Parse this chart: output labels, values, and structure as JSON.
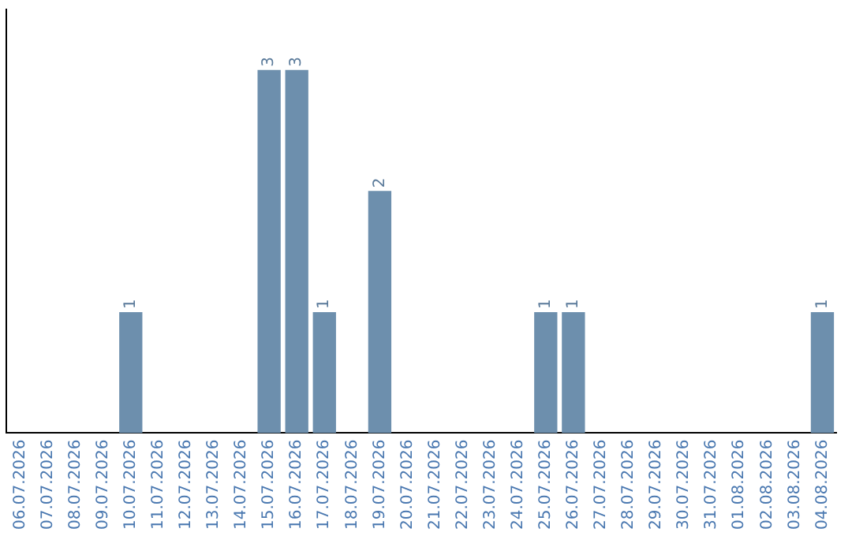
{
  "chart_data": {
    "type": "bar",
    "categories": [
      "06.07.2026",
      "07.07.2026",
      "08.07.2026",
      "09.07.2026",
      "10.07.2026",
      "11.07.2026",
      "12.07.2026",
      "13.07.2026",
      "14.07.2026",
      "15.07.2026",
      "16.07.2026",
      "17.07.2026",
      "18.07.2026",
      "19.07.2026",
      "20.07.2026",
      "21.07.2026",
      "22.07.2026",
      "23.07.2026",
      "24.07.2026",
      "25.07.2026",
      "26.07.2026",
      "27.07.2026",
      "28.07.2026",
      "29.07.2026",
      "30.07.2026",
      "31.07.2026",
      "01.08.2026",
      "02.08.2026",
      "03.08.2026",
      "04.08.2026"
    ],
    "values": [
      0,
      0,
      0,
      0,
      1,
      0,
      0,
      0,
      0,
      3,
      3,
      1,
      0,
      2,
      0,
      0,
      0,
      0,
      0,
      1,
      1,
      0,
      0,
      0,
      0,
      0,
      0,
      0,
      0,
      1
    ],
    "value_labels": [
      null,
      null,
      null,
      null,
      "1",
      null,
      null,
      null,
      null,
      "3",
      "3",
      "1",
      null,
      "2",
      null,
      null,
      null,
      null,
      null,
      "1",
      "1",
      null,
      null,
      null,
      null,
      null,
      null,
      null,
      null,
      "1"
    ],
    "color": "#6d8fad",
    "tick_labels": "x",
    "grid": false,
    "legend": false
  }
}
